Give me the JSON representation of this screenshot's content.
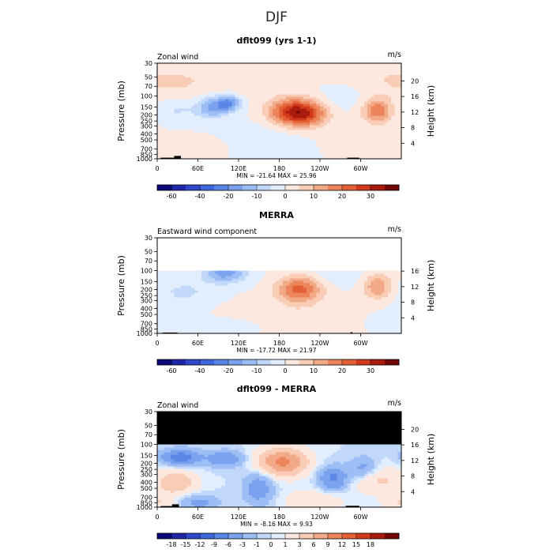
{
  "figure_title": "DJF",
  "chart_data": [
    {
      "type": "heatmap",
      "title": "dflt099 (yrs 1-1)",
      "left_label": "Zonal wind",
      "units": "m/s",
      "stats": "MIN = -21.64   MAX = 25.96",
      "ylabel": "Pressure (mb)",
      "y2label": "Height (km)",
      "x_ticks": [
        "0",
        "60E",
        "120E",
        "180",
        "120W",
        "60W"
      ],
      "x_tick_lon": [
        0,
        60,
        120,
        180,
        240,
        300
      ],
      "xlim": [
        0,
        360
      ],
      "p_ticks": [
        30,
        50,
        70,
        100,
        150,
        200,
        250,
        300,
        400,
        500,
        700,
        850,
        1000
      ],
      "ylim_mb": [
        1000,
        30
      ],
      "height_ticks": [
        4,
        8,
        12,
        16,
        20
      ],
      "masked_above_mb": null,
      "grid": false,
      "features": [
        {
          "lon": 80,
          "p": 150,
          "amp": -16,
          "slon": 14,
          "sp": 0.28
        },
        {
          "lon": 105,
          "p": 130,
          "amp": -21.6,
          "slon": 12,
          "sp": 0.22
        },
        {
          "lon": 30,
          "p": 160,
          "amp": -6,
          "slon": 25,
          "sp": 0.3
        },
        {
          "lon": 275,
          "p": 90,
          "amp": -5,
          "slon": 40,
          "sp": 0.4
        },
        {
          "lon": 170,
          "p": 600,
          "amp": -4,
          "slon": 60,
          "sp": 0.5
        },
        {
          "lon": 195,
          "p": 180,
          "amp": 26,
          "slon": 22,
          "sp": 0.35
        },
        {
          "lon": 225,
          "p": 190,
          "amp": 20,
          "slon": 20,
          "sp": 0.35
        },
        {
          "lon": 325,
          "p": 170,
          "amp": 19,
          "slon": 16,
          "sp": 0.32
        },
        {
          "lon": 60,
          "p": 700,
          "amp": 5,
          "slon": 35,
          "sp": 0.3
        },
        {
          "lon": 0,
          "p": 60,
          "amp": 6,
          "slon": 90,
          "sp": 0.5
        },
        {
          "lon": 280,
          "p": 600,
          "amp": 3,
          "slon": 50,
          "sp": 0.4
        }
      ],
      "topography": [
        {
          "lon0": 5,
          "lon1": 30,
          "p": 960
        },
        {
          "lon0": 25,
          "lon1": 35,
          "p": 900
        },
        {
          "lon0": 280,
          "lon1": 298,
          "p": 960
        }
      ],
      "colorbar": {
        "labels": [
          "-60",
          "-40",
          "-20",
          "-10",
          "0",
          "10",
          "20",
          "30"
        ],
        "label_after_box": [
          1,
          3,
          5,
          7,
          9,
          11,
          13,
          15
        ],
        "levels": [
          -70,
          -60,
          -50,
          -40,
          -30,
          -20,
          -15,
          -10,
          -5,
          0,
          5,
          10,
          15,
          20,
          25,
          30,
          35
        ],
        "colors": [
          "#0a0a78",
          "#1e28a6",
          "#2e48c8",
          "#3c66dc",
          "#5a86e6",
          "#7aa2ee",
          "#9dbdf5",
          "#c1d8fb",
          "#e2eefd",
          "#fde8df",
          "#f8ccb5",
          "#f2a988",
          "#ec855c",
          "#e35f34",
          "#d03a1a",
          "#a81b0d",
          "#720806"
        ]
      }
    },
    {
      "type": "heatmap",
      "title": "MERRA",
      "left_label": "Eastward wind component",
      "units": "m/s",
      "stats": "MIN = -17.72   MAX = 21.97",
      "ylabel": "Pressure (mb)",
      "y2label": "Height (km)",
      "x_ticks": [
        "0",
        "60E",
        "120E",
        "180",
        "120W",
        "60W"
      ],
      "x_tick_lon": [
        0,
        60,
        120,
        180,
        240,
        300
      ],
      "xlim": [
        0,
        360
      ],
      "p_ticks": [
        30,
        50,
        70,
        100,
        150,
        200,
        250,
        300,
        400,
        500,
        700,
        850,
        1000
      ],
      "ylim_mb": [
        1000,
        30
      ],
      "height_ticks": [
        4,
        8,
        12,
        16
      ],
      "masked_above_mb": 100,
      "mask_color": "#ffffff",
      "grid": false,
      "features": [
        {
          "lon": 100,
          "p": 110,
          "amp": -17.7,
          "slon": 22,
          "sp": 0.25
        },
        {
          "lon": 40,
          "p": 220,
          "amp": -6,
          "slon": 30,
          "sp": 0.35
        },
        {
          "lon": 130,
          "p": 800,
          "amp": -4,
          "slon": 40,
          "sp": 0.3
        },
        {
          "lon": 265,
          "p": 110,
          "amp": -5,
          "slon": 25,
          "sp": 0.3
        },
        {
          "lon": 210,
          "p": 200,
          "amp": 22,
          "slon": 23,
          "sp": 0.35
        },
        {
          "lon": 325,
          "p": 180,
          "amp": 15,
          "slon": 15,
          "sp": 0.32
        },
        {
          "lon": 10,
          "p": 700,
          "amp": -4,
          "slon": 30,
          "sp": 0.35
        },
        {
          "lon": 180,
          "p": 700,
          "amp": 4,
          "slon": 60,
          "sp": 0.5
        }
      ],
      "topography": [
        {
          "lon0": 8,
          "lon1": 30,
          "p": 970
        },
        {
          "lon0": 285,
          "lon1": 288,
          "p": 960
        }
      ],
      "colorbar": {
        "labels": [
          "-60",
          "-40",
          "-20",
          "-10",
          "0",
          "10",
          "20",
          "30"
        ],
        "label_after_box": [
          1,
          3,
          5,
          7,
          9,
          11,
          13,
          15
        ],
        "levels": [
          -70,
          -60,
          -50,
          -40,
          -30,
          -20,
          -15,
          -10,
          -5,
          0,
          5,
          10,
          15,
          20,
          25,
          30,
          35
        ],
        "colors": [
          "#0a0a78",
          "#1e28a6",
          "#2e48c8",
          "#3c66dc",
          "#5a86e6",
          "#7aa2ee",
          "#9dbdf5",
          "#c1d8fb",
          "#e2eefd",
          "#fde8df",
          "#f8ccb5",
          "#f2a988",
          "#ec855c",
          "#e35f34",
          "#d03a1a",
          "#a81b0d",
          "#720806"
        ]
      }
    },
    {
      "type": "heatmap",
      "title": "dflt099 - MERRA",
      "left_label": "Zonal wind",
      "units": "m/s",
      "stats": "MIN = -8.16   MAX = 9.93",
      "ylabel": "Pressure (mb)",
      "y2label": "Height (km)",
      "x_ticks": [
        "0",
        "60E",
        "120E",
        "180",
        "120W",
        "60W"
      ],
      "x_tick_lon": [
        0,
        60,
        120,
        180,
        240,
        300
      ],
      "xlim": [
        0,
        360
      ],
      "p_ticks": [
        30,
        50,
        70,
        100,
        150,
        200,
        250,
        300,
        400,
        500,
        700,
        850,
        1000
      ],
      "ylim_mb": [
        1000,
        30
      ],
      "height_ticks": [
        4,
        8,
        12,
        16,
        20
      ],
      "masked_above_mb": 100,
      "mask_color": "#000000",
      "grid": false,
      "features": [
        {
          "lon": 35,
          "p": 160,
          "amp": -8.2,
          "slon": 20,
          "sp": 0.2
        },
        {
          "lon": 100,
          "p": 170,
          "amp": -6,
          "slon": 18,
          "sp": 0.2
        },
        {
          "lon": 150,
          "p": 500,
          "amp": -5,
          "slon": 15,
          "sp": 0.4
        },
        {
          "lon": 260,
          "p": 350,
          "amp": -7,
          "slon": 15,
          "sp": 0.3
        },
        {
          "lon": 305,
          "p": 250,
          "amp": -5,
          "slon": 15,
          "sp": 0.3
        },
        {
          "lon": 60,
          "p": 850,
          "amp": -4,
          "slon": 20,
          "sp": 0.2
        },
        {
          "lon": 185,
          "p": 190,
          "amp": 9.9,
          "slon": 25,
          "sp": 0.35
        },
        {
          "lon": 30,
          "p": 400,
          "amp": 5,
          "slon": 20,
          "sp": 0.3
        },
        {
          "lon": 320,
          "p": 350,
          "amp": 4,
          "slon": 25,
          "sp": 0.35
        },
        {
          "lon": 0,
          "p": 850,
          "amp": 3,
          "slon": 20,
          "sp": 0.3
        },
        {
          "lon": 230,
          "p": 800,
          "amp": 3,
          "slon": 30,
          "sp": 0.3
        }
      ],
      "topography": [
        {
          "lon0": 5,
          "lon1": 25,
          "p": 960
        },
        {
          "lon0": 22,
          "lon1": 32,
          "p": 900
        },
        {
          "lon0": 278,
          "lon1": 298,
          "p": 950
        }
      ],
      "colorbar": {
        "labels": [
          "-18",
          "-15",
          "-12",
          "-9",
          "-6",
          "-3",
          "-1",
          "0",
          "1",
          "3",
          "6",
          "9",
          "12",
          "15",
          "18"
        ],
        "label_after_box": [
          1,
          2,
          3,
          4,
          5,
          6,
          7,
          8,
          9,
          10,
          11,
          12,
          13,
          14,
          15
        ],
        "levels": [
          -21,
          -18,
          -15,
          -12,
          -9,
          -6,
          -3,
          -1,
          0,
          1,
          3,
          6,
          9,
          12,
          15,
          18,
          21
        ],
        "colors": [
          "#0a0a78",
          "#1e28a6",
          "#2e48c8",
          "#3c66dc",
          "#5a86e6",
          "#7aa2ee",
          "#9dbdf5",
          "#c1d8fb",
          "#e2eefd",
          "#fde8df",
          "#f8ccb5",
          "#f2a988",
          "#ec855c",
          "#e35f34",
          "#d03a1a",
          "#a81b0d",
          "#720806"
        ]
      }
    }
  ]
}
